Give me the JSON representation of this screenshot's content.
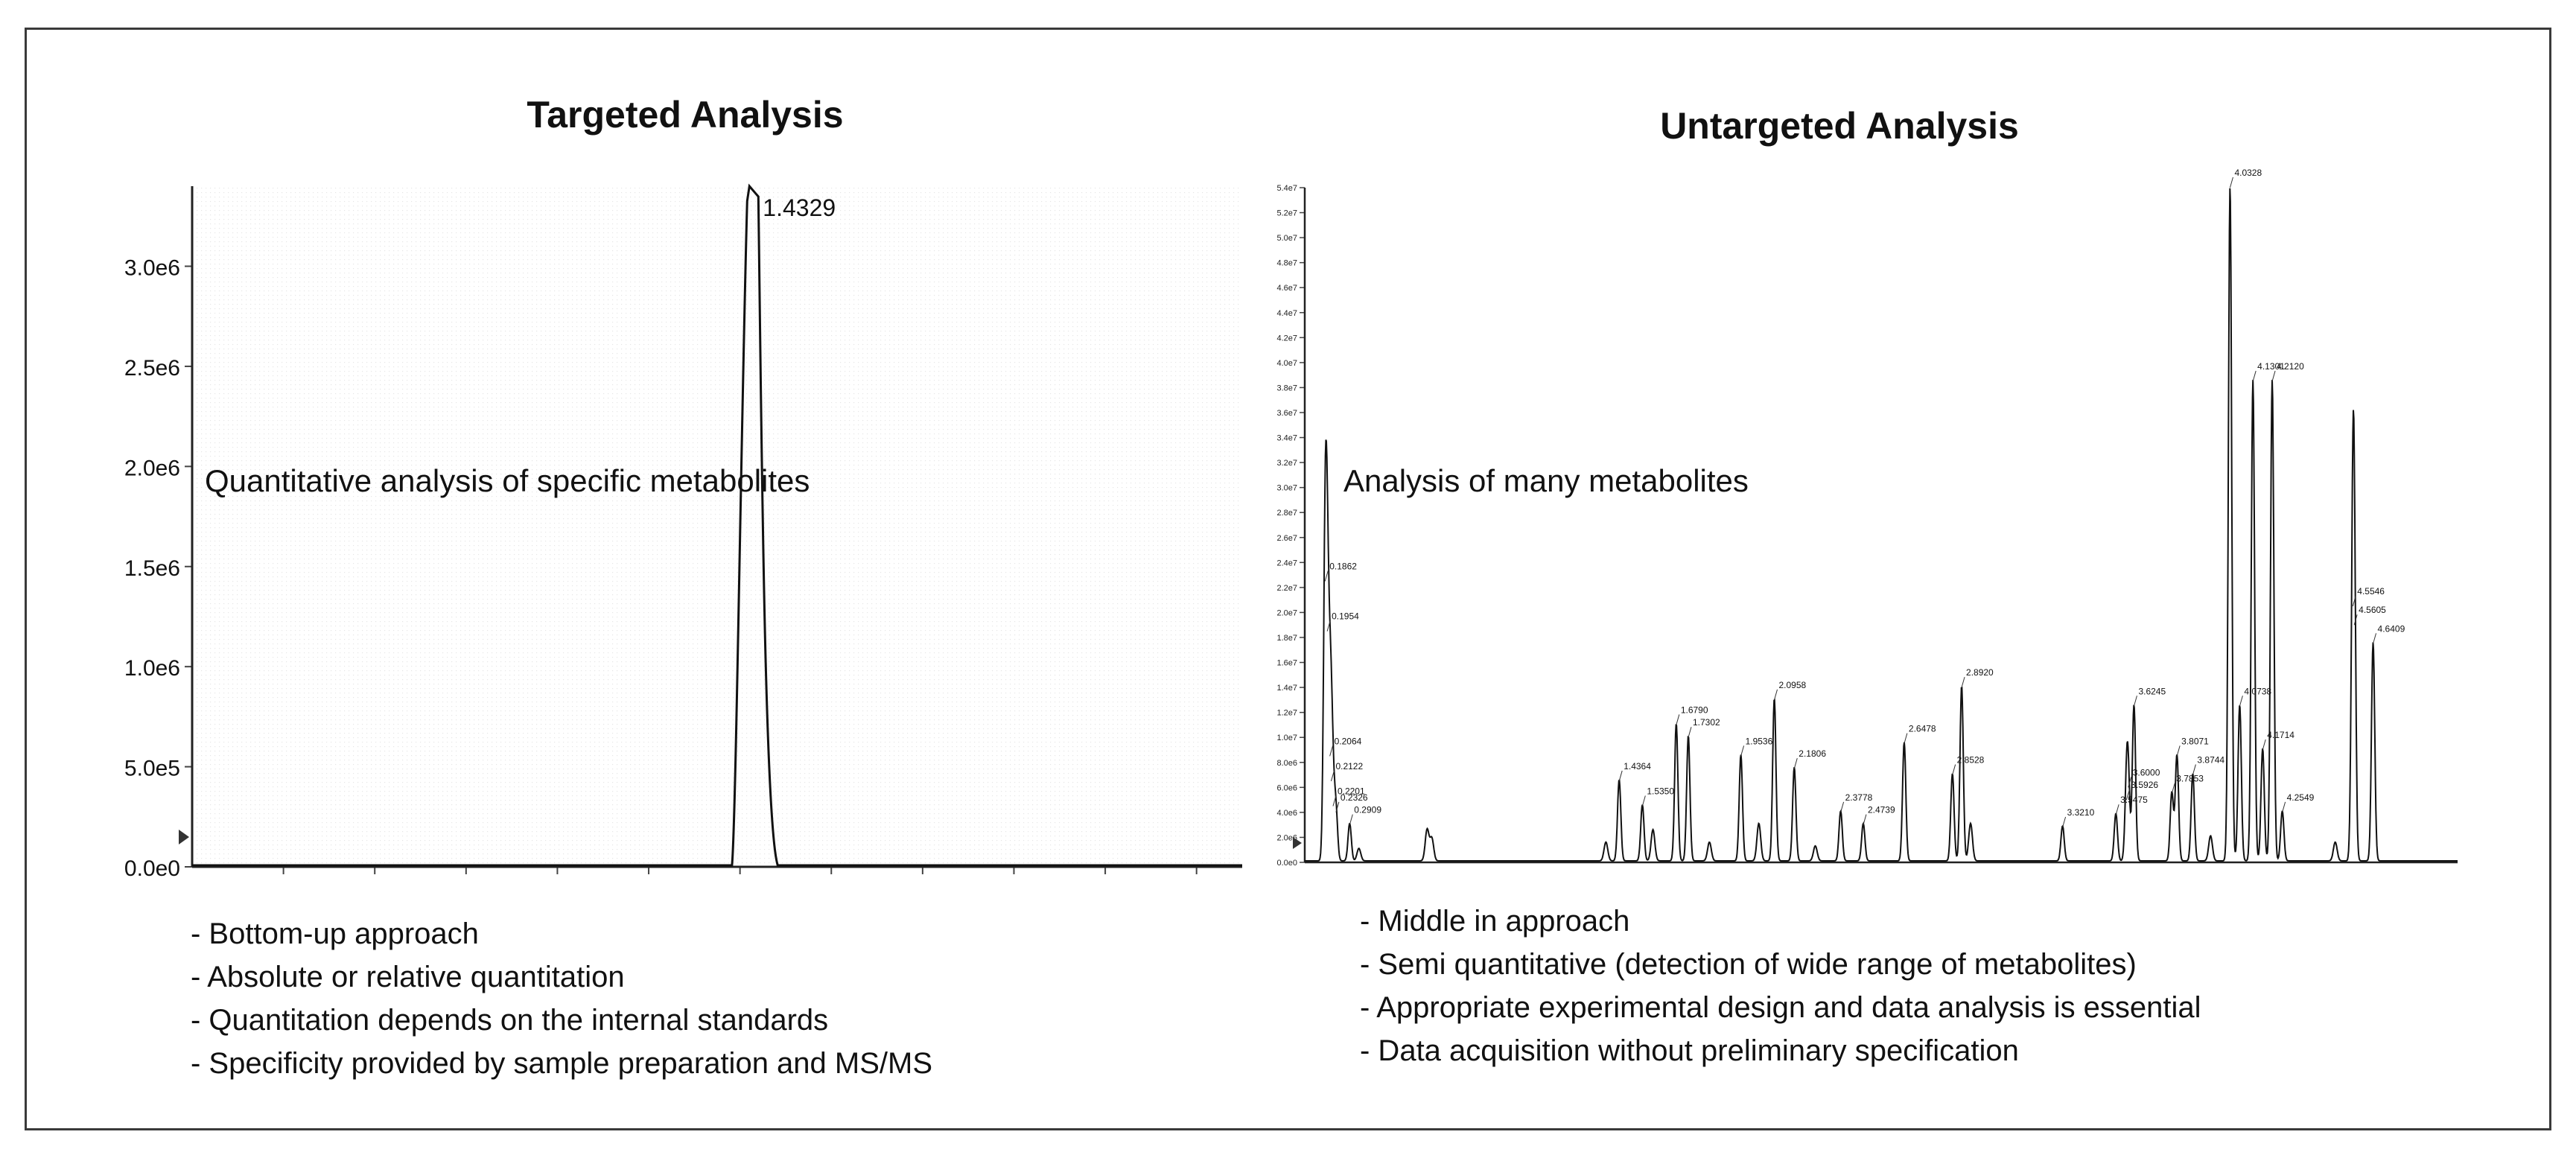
{
  "chart_data": [
    {
      "type": "line",
      "title": "Targeted Analysis",
      "annotation": "Quantitative analysis of specific metabolites",
      "xlabel": "",
      "ylabel": "",
      "yticks": [
        "0.0e0",
        "5.0e5",
        "1.0e6",
        "1.5e6",
        "2.0e6",
        "2.5e6",
        "3.0e6"
      ],
      "ytick_values": [
        0,
        500000,
        1000000,
        1500000,
        2000000,
        2500000,
        3000000
      ],
      "ylim": [
        0,
        3400000
      ],
      "xlim": [
        0,
        2.7
      ],
      "grid": true,
      "peaks": [
        {
          "label": "1.4329",
          "x": 1.4329,
          "y": 3400000
        }
      ],
      "bullets": [
        "- Bottom-up approach",
        "- Absolute or relative quantitation",
        "- Quantitation depends on the internal standards",
        "- Specificity provided by sample preparation and MS/MS"
      ]
    },
    {
      "type": "line",
      "title": "Untargeted Analysis",
      "annotation": "Analysis of many metabolites",
      "xlabel": "",
      "ylabel": "",
      "yticks": [
        "0.0e0",
        "2.0e6",
        "4.0e6",
        "6.0e6",
        "8.0e6",
        "1.0e7",
        "1.2e7",
        "1.4e7",
        "1.6e7",
        "1.8e7",
        "2.0e7",
        "2.2e7",
        "2.4e7",
        "2.6e7",
        "2.8e7",
        "3.0e7",
        "3.2e7",
        "3.4e7",
        "3.6e7",
        "3.8e7",
        "4.0e7",
        "4.2e7",
        "4.4e7",
        "4.6e7",
        "4.8e7",
        "5.0e7",
        "5.2e7",
        "5.4e7"
      ],
      "ylim": [
        0,
        54000000
      ],
      "xlim": [
        0.1,
        5.0
      ],
      "grid": false,
      "peaks": [
        {
          "label": "0.1862",
          "x": 0.1862,
          "y": 22500000
        },
        {
          "label": "0.1954",
          "x": 0.1954,
          "y": 18500000
        },
        {
          "label": "0.2064",
          "x": 0.2064,
          "y": 8500000
        },
        {
          "label": "0.2122",
          "x": 0.2122,
          "y": 6500000
        },
        {
          "label": "0.2201",
          "x": 0.2201,
          "y": 4500000
        },
        {
          "label": "0.2326",
          "x": 0.2326,
          "y": 4000000
        },
        {
          "label": "0.2909",
          "x": 0.2909,
          "y": 3000000
        },
        {
          "label": "1.4364",
          "x": 1.4364,
          "y": 6500000
        },
        {
          "label": "1.5350",
          "x": 1.535,
          "y": 4500000
        },
        {
          "label": "1.6790",
          "x": 1.679,
          "y": 11000000
        },
        {
          "label": "1.7302",
          "x": 1.7302,
          "y": 10000000
        },
        {
          "label": "1.9536",
          "x": 1.9536,
          "y": 8500000
        },
        {
          "label": "2.0958",
          "x": 2.0958,
          "y": 13000000
        },
        {
          "label": "2.1806",
          "x": 2.1806,
          "y": 7500000
        },
        {
          "label": "2.3778",
          "x": 2.3778,
          "y": 4000000
        },
        {
          "label": "2.4739",
          "x": 2.4739,
          "y": 3000000
        },
        {
          "label": "2.6478",
          "x": 2.6478,
          "y": 9500000
        },
        {
          "label": "2.8528",
          "x": 2.8528,
          "y": 7000000
        },
        {
          "label": "2.8920",
          "x": 2.892,
          "y": 14000000
        },
        {
          "label": "3.3210",
          "x": 3.321,
          "y": 2800000
        },
        {
          "label": "3.5475",
          "x": 3.5475,
          "y": 3800000
        },
        {
          "label": "3.5926",
          "x": 3.5926,
          "y": 5000000
        },
        {
          "label": "3.6000",
          "x": 3.6,
          "y": 6000000
        },
        {
          "label": "3.6245",
          "x": 3.6245,
          "y": 12500000
        },
        {
          "label": "3.7853",
          "x": 3.7853,
          "y": 5500000
        },
        {
          "label": "3.8071",
          "x": 3.8071,
          "y": 8500000
        },
        {
          "label": "3.8744",
          "x": 3.8744,
          "y": 7000000
        },
        {
          "label": "4.0328",
          "x": 4.0328,
          "y": 54000000
        },
        {
          "label": "4.0738",
          "x": 4.0738,
          "y": 12500000
        },
        {
          "label": "4.1301",
          "x": 4.1301,
          "y": 38500000
        },
        {
          "label": "4.1714",
          "x": 4.1714,
          "y": 9000000
        },
        {
          "label": "4.2120",
          "x": 4.212,
          "y": 38500000
        },
        {
          "label": "4.2549",
          "x": 4.2549,
          "y": 4000000
        },
        {
          "label": "4.5546",
          "x": 4.5546,
          "y": 20500000
        },
        {
          "label": "4.5605",
          "x": 4.5605,
          "y": 19000000
        },
        {
          "label": "4.6409",
          "x": 4.6409,
          "y": 17500000
        }
      ],
      "bullets": [
        "- Middle in approach",
        "- Semi quantitative (detection of wide range of metabolites)",
        "- Appropriate experimental design and data analysis is essential",
        "- Data acquisition without preliminary specification"
      ]
    }
  ]
}
